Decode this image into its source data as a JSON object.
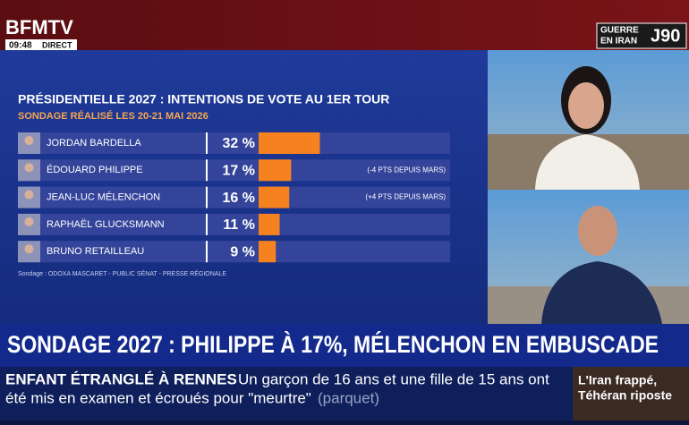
{
  "chart_data": {
    "type": "bar",
    "orientation": "horizontal",
    "title": "PRÉSIDENTIELLE 2027 : INTENTIONS DE VOTE AU 1ER TOUR",
    "subtitle": "SONDAGE RÉALISÉ LES 20-21 MAI 2026",
    "categories": [
      "JORDAN BARDELLA",
      "ÉDOUARD PHILIPPE",
      "JEAN-LUC MÉLENCHON",
      "RAPHAËL GLUCKSMANN",
      "BRUNO RETAILLEAU"
    ],
    "values": [
      32,
      17,
      16,
      11,
      9
    ],
    "value_labels": [
      "32 %",
      "17 %",
      "16 %",
      "11 %",
      "9 %"
    ],
    "annotations": [
      null,
      "(-4 PTS DEPUIS MARS)",
      "(+4 PTS DEPUIS MARS)",
      null,
      null
    ],
    "color": "#f5821f",
    "xlim": [
      0,
      100
    ],
    "source": "Sondage : ODOXA MASCARET - PUBLIC SÉNAT - PRESSE RÉGIONALE"
  },
  "header": {
    "channel": "BFMTV",
    "time": "09:48",
    "live": "DIRECT",
    "topic": [
      "GUERRE",
      "EN IRAN"
    ],
    "day": "J90"
  },
  "headline": "SONDAGE 2027 : PHILIPPE À 17%, MÉLENCHON EN EMBUSCADE",
  "ticker": {
    "label": "ENFANT ÉTRANGLÉ À RENNES",
    "lines": [
      "Un garçon de 16 ans et une fille de 15 ans ont",
      "été mis en examen et écroués pour \"meurtre\""
    ],
    "source": "(parquet)"
  },
  "teaser": [
    "L'Iran frappé,",
    "Téhéran riposte"
  ]
}
